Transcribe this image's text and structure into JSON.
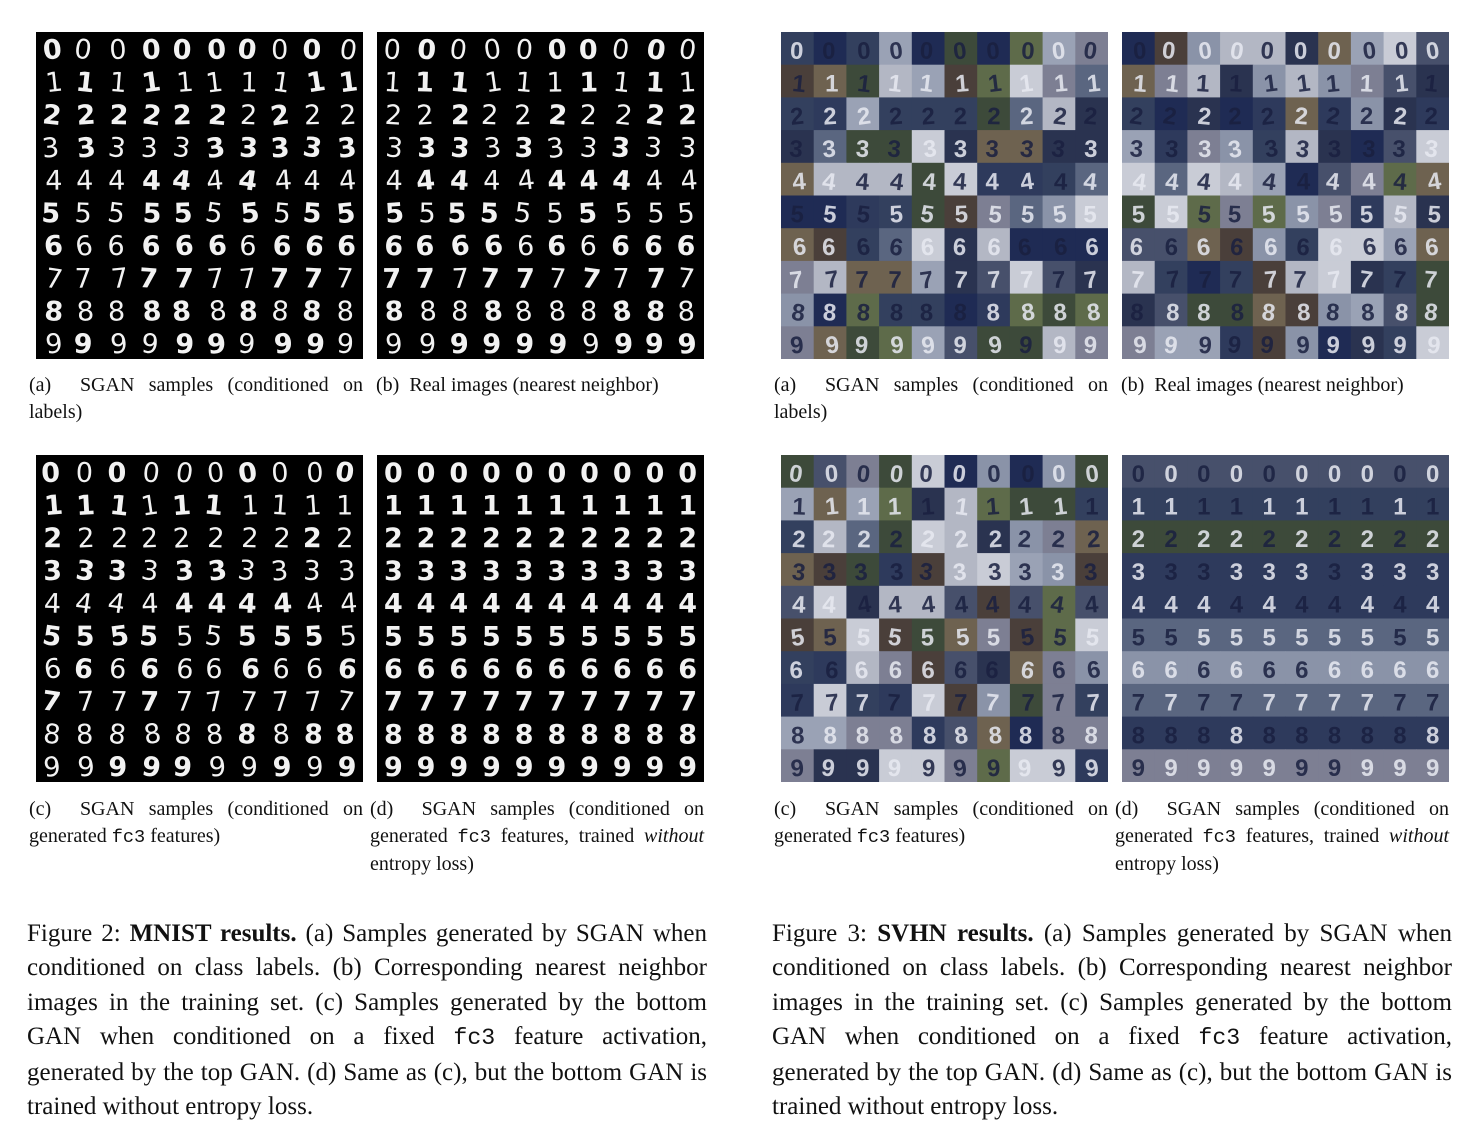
{
  "figure2": {
    "panels": {
      "a": {
        "kind": "mnist",
        "style": "varied",
        "label": "(a)",
        "caption_text": "SGAN samples (conditioned on labels)"
      },
      "b": {
        "kind": "mnist",
        "style": "varied",
        "label": "(b)",
        "caption_text": "Real images (nearest neighbor)"
      },
      "c": {
        "kind": "mnist",
        "style": "varied",
        "label": "(c)",
        "caption_pre": "SGAN samples (conditioned on generated ",
        "caption_code": "fc3",
        "caption_post": " features)"
      },
      "d": {
        "kind": "mnist",
        "style": "uniform",
        "label": "(d)",
        "caption_pre": "SGAN samples (conditioned on generated ",
        "caption_code": "fc3",
        "caption_mid": " features, trained ",
        "caption_em": "without",
        "caption_post": " entropy loss)"
      }
    },
    "caption": {
      "label": "Figure 2:",
      "bold": "MNIST results.",
      "text1": " (a) Samples generated by SGAN when conditioned on class labels. (b) Corresponding nearest neighbor images in the training set. (c) Samples generated by the bottom GAN when conditioned on a fixed ",
      "code": "fc3",
      "text2": " feature activation, generated by the top GAN. (d) Same as (c), but the bottom GAN is trained without entropy loss."
    }
  },
  "figure3": {
    "panels": {
      "a": {
        "kind": "svhn",
        "style": "varied",
        "label": "(a)",
        "caption_text": "SGAN samples (conditioned on labels)"
      },
      "b": {
        "kind": "svhn",
        "style": "varied",
        "label": "(b)",
        "caption_text": "Real images (nearest neighbor)"
      },
      "c": {
        "kind": "svhn",
        "style": "varied",
        "label": "(c)",
        "caption_pre": "SGAN samples (conditioned on generated ",
        "caption_code": "fc3",
        "caption_post": " features)"
      },
      "d": {
        "kind": "svhn",
        "style": "uniform",
        "label": "(d)",
        "caption_pre": "SGAN samples (conditioned on generated ",
        "caption_code": "fc3",
        "caption_mid": " features, trained ",
        "caption_em": "without",
        "caption_post": " entropy loss)"
      }
    },
    "caption": {
      "label": "Figure 3:",
      "bold": "SVHN results.",
      "text1": " (a) Samples generated by SGAN when conditioned on class labels. (b) Corresponding nearest neighbor images in the training set. (c) Samples generated by the bottom GAN when conditioned on a fixed ",
      "code": "fc3",
      "text2": " feature activation, generated by the top GAN. (d) Same as (c), but the bottom GAN is trained without entropy loss."
    }
  },
  "grid": {
    "digit_rows": [
      "0",
      "1",
      "2",
      "3",
      "4",
      "5",
      "6",
      "7",
      "8",
      "9"
    ],
    "columns_per_row": 10
  }
}
